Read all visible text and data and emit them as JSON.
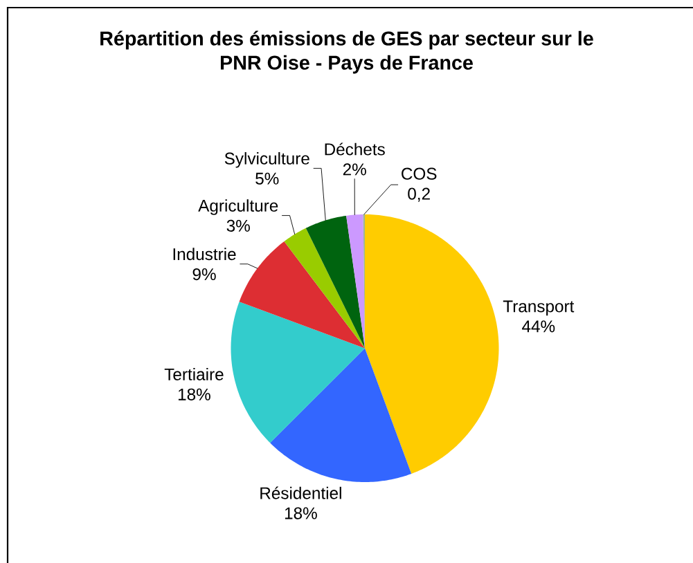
{
  "chart_data": {
    "type": "pie",
    "title": "Répartition des émissions de GES par secteur sur le PNR Oise - Pays de France",
    "categories": [
      "Transport",
      "Résidentiel",
      "Tertiaire",
      "Industrie",
      "Agriculture",
      "Sylviculture",
      "Déchets",
      "COS"
    ],
    "values": [
      44,
      18,
      18,
      9,
      3,
      5,
      2,
      0.2
    ],
    "value_labels": [
      "44%",
      "18%",
      "18%",
      "9%",
      "3%",
      "5%",
      "2%",
      "0,2"
    ],
    "colors": [
      "#ffcc00",
      "#3366ff",
      "#33cccc",
      "#dd2e33",
      "#99cc00",
      "#00640f",
      "#cc99ff",
      "#9fb596"
    ]
  }
}
